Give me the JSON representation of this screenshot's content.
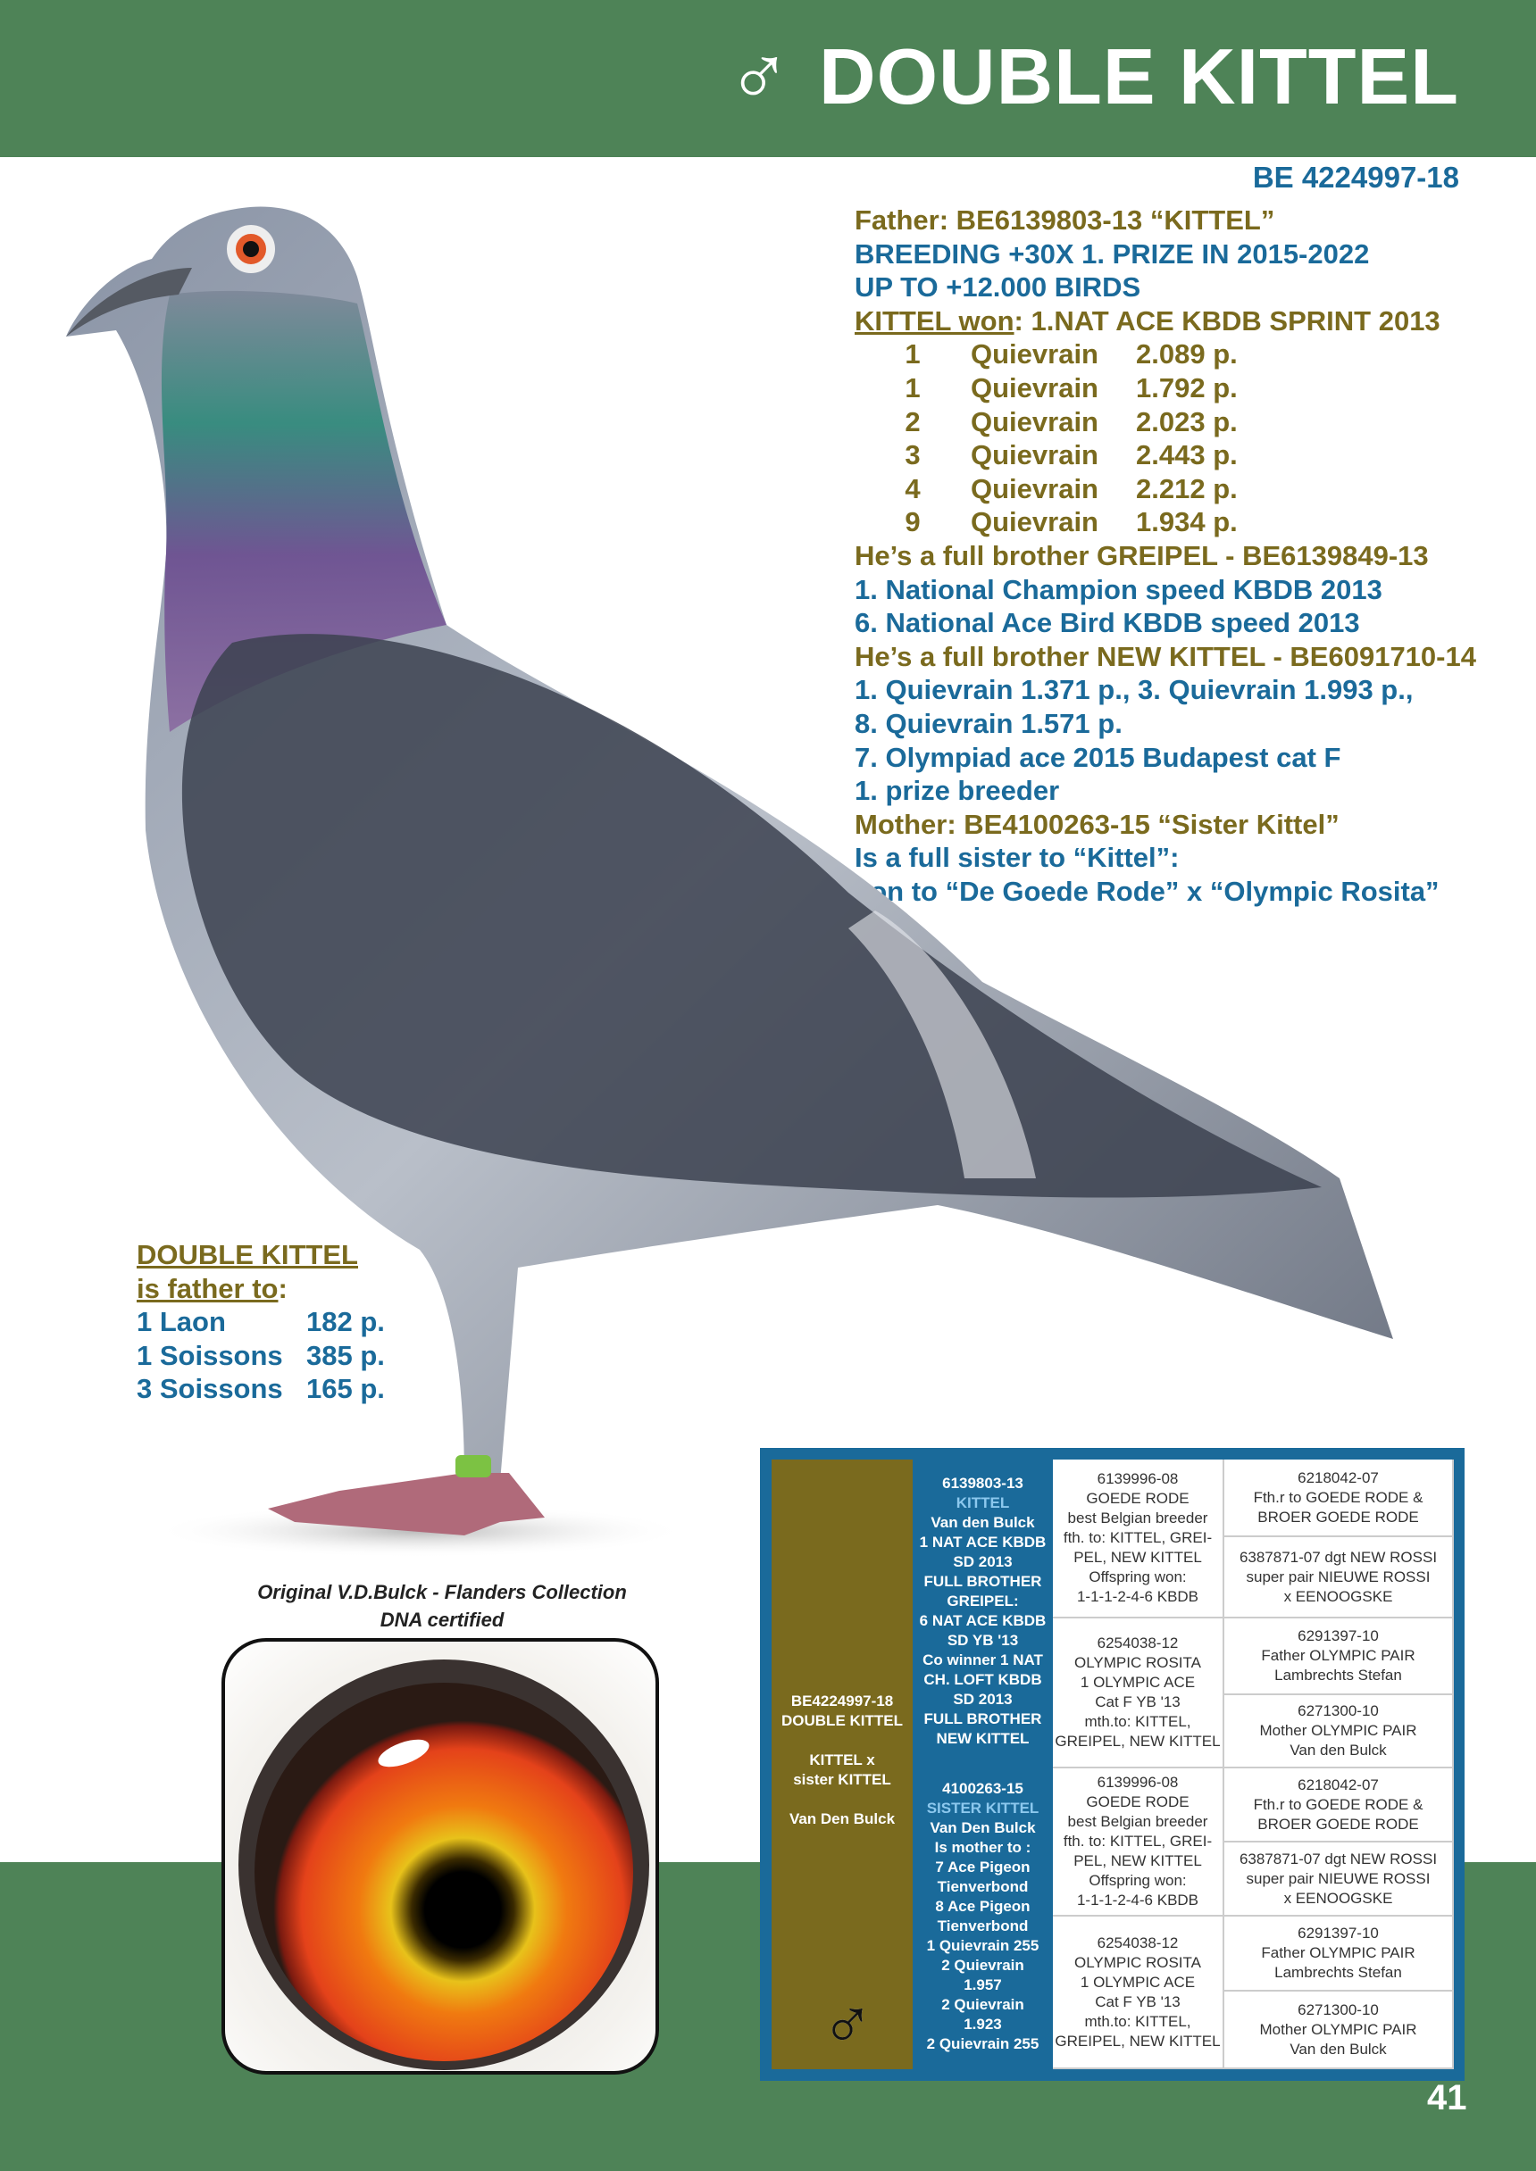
{
  "header": {
    "symbol": "♂",
    "title": "DOUBLE KITTEL",
    "ring": "BE 4224997-18"
  },
  "colors": {
    "green": "#4e8357",
    "olive": "#7a6a1e",
    "blue": "#1a6a9a"
  },
  "info": {
    "father": "Father: BE6139803-13 “KITTEL”",
    "breeding": "BREEDING +30X 1. PRIZE IN 2015-2022",
    "upto": "UP TO +12.000 BIRDS",
    "won_label": "KITTEL won",
    "won_rest": ": 1.NAT ACE KBDB SPRINT 2013",
    "results": [
      {
        "pos": "1",
        "place": "Quievrain",
        "birds": "2.089 p."
      },
      {
        "pos": "1",
        "place": "Quievrain",
        "birds": "1.792 p."
      },
      {
        "pos": "2",
        "place": "Quievrain",
        "birds": "2.023 p."
      },
      {
        "pos": "3",
        "place": "Quievrain",
        "birds": "2.443 p."
      },
      {
        "pos": "4",
        "place": "Quievrain",
        "birds": "2.212 p."
      },
      {
        "pos": "9",
        "place": "Quievrain",
        "birds": "1.934 p."
      }
    ],
    "greipel": "He’s a full brother GREIPEL - BE6139849-13",
    "greipel1": "1. National Champion speed KBDB 2013",
    "greipel2": "6. National Ace Bird KBDB speed 2013",
    "newkittel": "He’s a full brother NEW KITTEL - BE6091710-14",
    "nk1": "1. Quievrain 1.371 p., 3. Quievrain 1.993 p.,",
    "nk2": "8. Quievrain 1.571 p.",
    "nk3": "7. Olympiad ace 2015 Budapest cat F",
    "nk4": "1. prize breeder",
    "mother": "Mother: BE4100263-15 “Sister Kittel”",
    "m1": "Is a full sister to “Kittel”:",
    "m2": "son to “De Goede Rode” x “Olympic Rosita”"
  },
  "father_of": {
    "title1": "DOUBLE KITTEL ",
    "title2": "is father to",
    "colon": ":",
    "rows": [
      {
        "race": "1 Laon",
        "birds": "182 p."
      },
      {
        "race": "1 Soissons",
        "birds": "385 p."
      },
      {
        "race": "3 Soissons",
        "birds": "165 p."
      }
    ]
  },
  "caption": {
    "line1": "Original V.D.Bulck - Flanders Collection",
    "line2": "DNA certified"
  },
  "pedigree": {
    "subject": {
      "ring": "BE4224997-18",
      "name": "DOUBLE KITTEL",
      "cross1": "KITTEL x",
      "cross2": "sister KITTEL",
      "breeder": "Van Den Bulck",
      "symbol": "♂"
    },
    "sire": {
      "ring": "6139803-13",
      "name": "KITTEL",
      "lines": [
        "Van den Bulck",
        "1 NAT ACE KBDB",
        "SD 2013",
        "FULL BROTHER",
        "GREIPEL:",
        "6 NAT ACE KBDB",
        "SD YB '13",
        "Co winner 1 NAT",
        "CH. LOFT KBDB",
        "SD 2013",
        "FULL BROTHER",
        "NEW KITTEL"
      ]
    },
    "dam": {
      "ring": "4100263-15",
      "name": "SISTER KITTEL",
      "lines": [
        "Van Den Bulck",
        "Is mother to :",
        "7 Ace Pigeon",
        "Tienverbond",
        "8 Ace Pigeon",
        "Tienverbond",
        "1 Quievrain 255",
        "2 Quievrain",
        "1.957",
        "2 Quievrain",
        "1.923",
        "2 Quievrain 255"
      ]
    },
    "gp": [
      [
        "6139996-08",
        "GOEDE RODE",
        "best Belgian breeder",
        "fth. to: KITTEL, GREI-",
        "PEL, NEW KITTEL",
        "Offspring won:",
        "1-1-1-2-4-6 KBDB"
      ],
      [
        "6254038-12",
        "OLYMPIC ROSITA",
        "1 OLYMPIC ACE",
        "Cat F YB '13",
        "mth.to: KITTEL,",
        "GREIPEL, NEW KITTEL"
      ],
      [
        "6139996-08",
        "GOEDE RODE",
        "best Belgian breeder",
        "fth. to: KITTEL, GREI-",
        "PEL, NEW KITTEL",
        "Offspring won:",
        "1-1-1-2-4-6 KBDB"
      ],
      [
        "6254038-12",
        "OLYMPIC ROSITA",
        "1 OLYMPIC ACE",
        "Cat F YB '13",
        "mth.to: KITTEL,",
        "GREIPEL, NEW KITTEL"
      ]
    ],
    "ggp": [
      [
        "6218042-07",
        "Fth.r to GOEDE RODE &",
        "BROER GOEDE RODE"
      ],
      [
        "6387871-07 dgt NEW ROSSI",
        "super pair NIEUWE ROSSI",
        "x EENOOGSKE"
      ],
      [
        "6291397-10",
        "Father OLYMPIC PAIR",
        "Lambrechts Stefan"
      ],
      [
        "6271300-10",
        "Mother OLYMPIC PAIR",
        "Van den Bulck"
      ],
      [
        "6218042-07",
        "Fth.r to GOEDE RODE &",
        "BROER GOEDE RODE"
      ],
      [
        "6387871-07 dgt NEW ROSSI",
        "super pair NIEUWE ROSSI",
        "x EENOOGSKE"
      ],
      [
        "6291397-10",
        "Father OLYMPIC PAIR",
        "Lambrechts Stefan"
      ],
      [
        "6271300-10",
        "Mother OLYMPIC PAIR",
        "Van den Bulck"
      ]
    ]
  },
  "page_number": "41"
}
